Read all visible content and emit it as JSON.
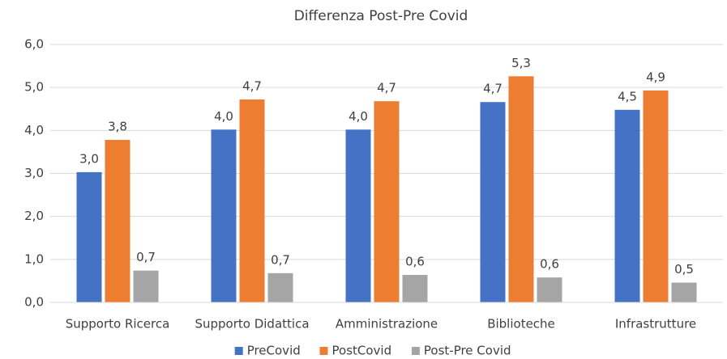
{
  "chart_data": {
    "type": "bar",
    "title": "Differenza Post-Pre Covid",
    "categories": [
      "Supporto Ricerca",
      "Supporto Didattica",
      "Amministrazione",
      "Biblioteche",
      "Infrastrutture"
    ],
    "series": [
      {
        "name": "PreCovid",
        "color": "#4472c4",
        "values": [
          3.03,
          4.02,
          4.02,
          4.66,
          4.48
        ],
        "value_labels": [
          "3,0",
          "4,0",
          "4,0",
          "4,7",
          "4,5"
        ]
      },
      {
        "name": "PostCovid",
        "color": "#ed7d31",
        "values": [
          3.78,
          4.72,
          4.68,
          5.26,
          4.93
        ],
        "value_labels": [
          "3,8",
          "4,7",
          "4,7",
          "5,3",
          "4,9"
        ]
      },
      {
        "name": "Post-Pre Covid",
        "color": "#a5a5a5",
        "values": [
          0.74,
          0.68,
          0.64,
          0.58,
          0.46
        ],
        "value_labels": [
          "0,7",
          "0,7",
          "0,6",
          "0,6",
          "0,5"
        ]
      }
    ],
    "ylim": [
      0,
      6
    ],
    "yticks": [
      {
        "value": 0,
        "label": "0,0"
      },
      {
        "value": 1,
        "label": "1,0"
      },
      {
        "value": 2,
        "label": "2,0"
      },
      {
        "value": 3,
        "label": "3,0"
      },
      {
        "value": 4,
        "label": "4,0"
      },
      {
        "value": 5,
        "label": "5,0"
      },
      {
        "value": 6,
        "label": "6,0"
      }
    ],
    "grid": true,
    "legend": "bottom"
  }
}
